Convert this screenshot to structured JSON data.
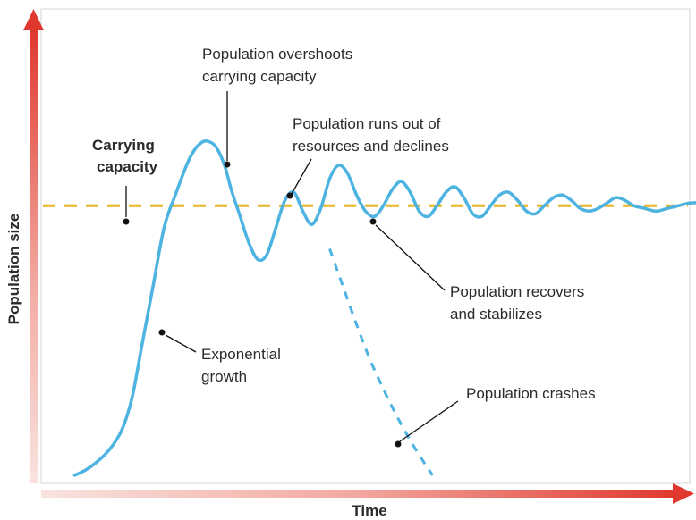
{
  "chart_data": {
    "type": "line",
    "title": "",
    "xlabel": "Time",
    "ylabel": "Population size",
    "carrying_capacity_label": "Carrying capacity",
    "carrying_capacity": 1.0,
    "grid": false,
    "series": [
      {
        "style": "solid",
        "x": [
          0,
          0.5,
          1,
          1.5,
          2,
          2.3,
          2.6,
          3,
          3.5,
          4,
          4.5,
          5,
          5.3,
          5.6,
          5.9,
          6.3,
          6.7,
          7,
          7.4,
          7.8,
          8.2,
          8.6,
          9,
          9.4,
          9.8,
          10.2,
          10.6,
          11,
          11.4,
          11.8,
          12.2,
          12.6,
          13,
          13.4,
          13.8,
          14.2,
          14.6,
          15,
          15.4,
          15.8,
          16.2,
          16.6,
          17,
          17.4,
          17.8,
          18.2,
          18.6,
          19,
          19.4,
          19.8,
          20.2,
          20.6,
          21,
          21.4,
          21.8,
          22.2,
          22.6,
          23,
          23.4,
          23.8,
          24.2,
          24.6,
          25,
          25.5,
          26,
          26.5,
          27,
          27.5,
          28,
          28.5
        ],
        "y": [
          0.0,
          0.02,
          0.05,
          0.09,
          0.15,
          0.21,
          0.3,
          0.48,
          0.7,
          0.92,
          1.04,
          1.15,
          1.2,
          1.23,
          1.24,
          1.22,
          1.15,
          1.06,
          0.96,
          0.86,
          0.8,
          0.82,
          0.92,
          1.02,
          1.05,
          0.98,
          0.93,
          0.99,
          1.1,
          1.15,
          1.12,
          1.04,
          0.98,
          0.96,
          1.0,
          1.06,
          1.09,
          1.05,
          0.98,
          0.96,
          1.0,
          1.05,
          1.07,
          1.03,
          0.97,
          0.96,
          1.0,
          1.04,
          1.05,
          1.02,
          0.98,
          0.97,
          1.0,
          1.03,
          1.04,
          1.02,
          0.99,
          0.98,
          0.99,
          1.01,
          1.03,
          1.02,
          1.0,
          0.99,
          0.98,
          0.99,
          1.0,
          1.01,
          1.01,
          1.0
        ]
      },
      {
        "style": "dashed",
        "x": [
          11.4,
          12,
          12.6,
          13.2,
          13.8,
          14.4,
          15.0,
          15.6,
          16.0
        ],
        "y": [
          0.84,
          0.7,
          0.56,
          0.43,
          0.32,
          0.22,
          0.13,
          0.05,
          0.0
        ]
      }
    ],
    "xlim": [
      -1.5,
      27.5
    ],
    "ylim": [
      -0.03,
      1.73
    ],
    "annotations": [
      {
        "text": "Population overshoots carrying capacity",
        "x": 7.2,
        "y": 1.23
      },
      {
        "text": "Population runs out of resources and declines",
        "x": 10.1,
        "y": 1.0
      },
      {
        "text": "Population recovers and stabilizes",
        "x": 13.6,
        "y": 1.0
      },
      {
        "text": "Exponential growth",
        "x": 4.2,
        "y": 0.56
      },
      {
        "text": "Population crashes",
        "x": 13.8,
        "y": 0.1
      }
    ],
    "colors": {
      "curve": "#4db3e0",
      "carrying_capacity": "#e8b527",
      "axis": "#e24a43"
    }
  }
}
